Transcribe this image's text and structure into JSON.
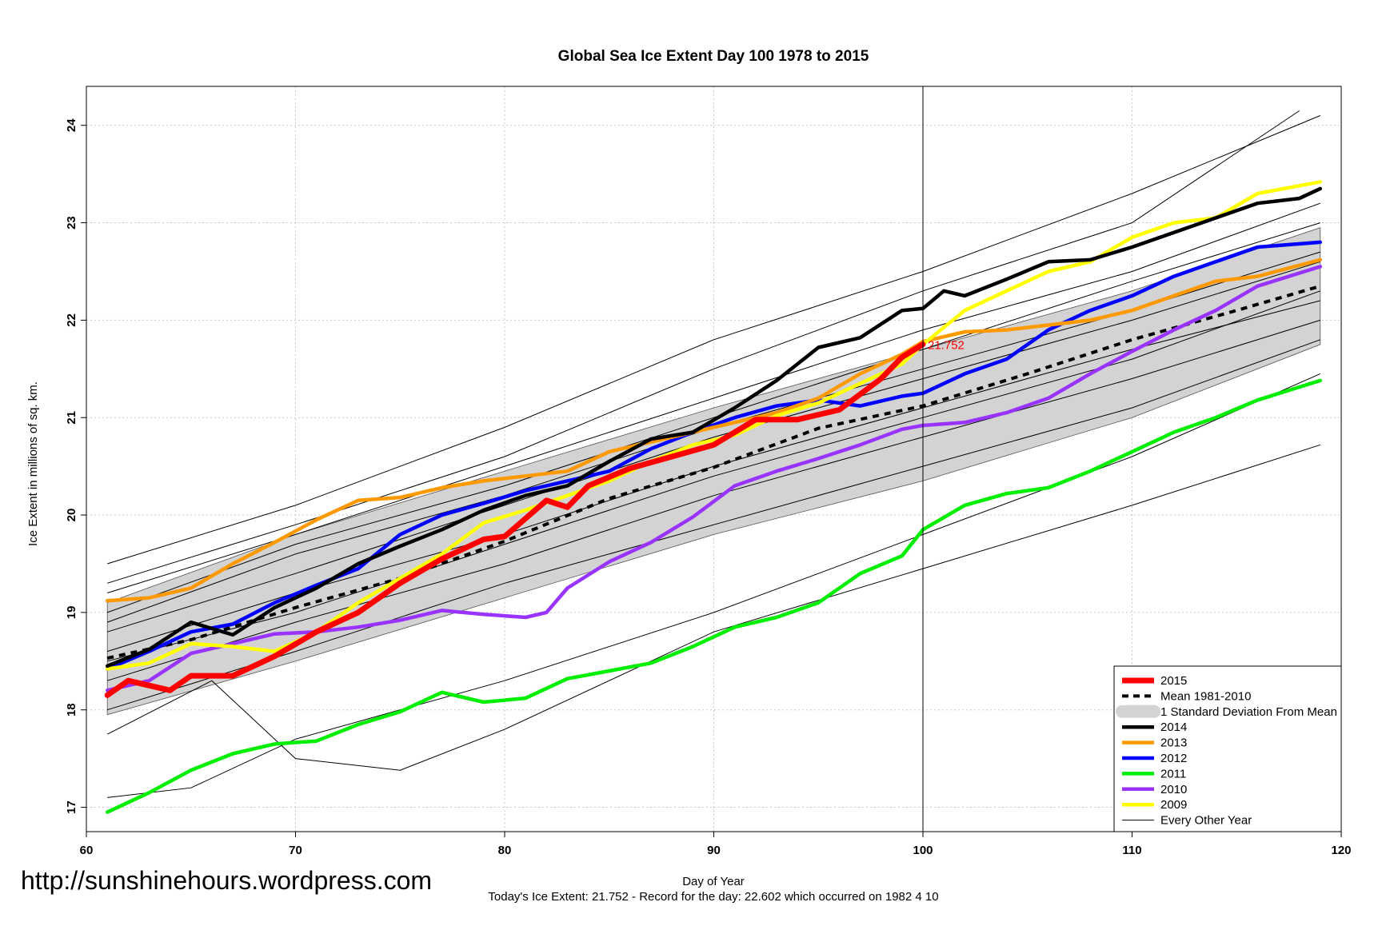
{
  "chart_data": {
    "type": "line",
    "title": "Global Sea Ice Extent Day 100 1978 to 2015",
    "xlabel": "Day of Year",
    "ylabel": "Ice Extent in millions of sq. km.",
    "xlim": [
      60,
      120
    ],
    "ylim": [
      16.75,
      24.4
    ],
    "x_ticks": [
      60,
      70,
      80,
      90,
      100,
      110,
      120
    ],
    "y_ticks": [
      17,
      18,
      19,
      20,
      21,
      22,
      23,
      24
    ],
    "grid": true,
    "vline_x": 100,
    "legend_position": "bottom-right",
    "annotation": {
      "text": "21.752",
      "x": 100,
      "y": 21.752
    },
    "std_band": {
      "x": [
        61,
        70,
        80,
        90,
        100,
        110,
        119
      ],
      "lower": [
        17.95,
        18.5,
        19.15,
        19.8,
        20.35,
        21.0,
        21.75
      ],
      "upper": [
        19.1,
        19.8,
        20.45,
        21.1,
        21.7,
        22.3,
        22.95
      ]
    },
    "mean_series": {
      "name": "Mean 1981-2010",
      "x": [
        61,
        65,
        70,
        75,
        80,
        85,
        90,
        95,
        100,
        105,
        110,
        115,
        119
      ],
      "values": [
        18.53,
        18.72,
        19.05,
        19.35,
        19.73,
        20.17,
        20.49,
        20.89,
        21.12,
        21.45,
        21.8,
        22.1,
        22.35
      ]
    },
    "series": [
      {
        "name": "2015",
        "color": "#ff0000",
        "width": 7,
        "x": [
          61,
          62,
          64,
          65,
          67,
          69,
          71,
          73,
          75,
          77,
          79,
          80,
          82,
          83,
          84,
          86,
          88,
          90,
          92,
          94,
          96,
          98,
          99,
          100
        ],
        "values": [
          18.15,
          18.3,
          18.2,
          18.35,
          18.35,
          18.55,
          18.8,
          19.0,
          19.3,
          19.55,
          19.75,
          19.78,
          20.15,
          20.08,
          20.3,
          20.48,
          20.6,
          20.72,
          20.98,
          20.98,
          21.08,
          21.4,
          21.62,
          21.752
        ]
      },
      {
        "name": "2014",
        "color": "#000000",
        "width": 4.5,
        "x": [
          61,
          63,
          65,
          67,
          69,
          71,
          73,
          75,
          77,
          79,
          81,
          83,
          85,
          87,
          89,
          91,
          93,
          95,
          97,
          99,
          100,
          101,
          102,
          104,
          106,
          108,
          110,
          112,
          114,
          116,
          118,
          119
        ],
        "values": [
          18.45,
          18.62,
          18.9,
          18.77,
          19.05,
          19.25,
          19.5,
          19.68,
          19.85,
          20.05,
          20.2,
          20.3,
          20.55,
          20.78,
          20.85,
          21.1,
          21.38,
          21.72,
          21.82,
          22.1,
          22.12,
          22.3,
          22.25,
          22.42,
          22.6,
          22.62,
          22.75,
          22.9,
          23.05,
          23.2,
          23.25,
          23.35
        ]
      },
      {
        "name": "2013",
        "color": "#ff9900",
        "width": 4.5,
        "x": [
          61,
          63,
          65,
          67,
          69,
          71,
          73,
          75,
          77,
          79,
          81,
          83,
          85,
          87,
          89,
          91,
          93,
          95,
          97,
          99,
          100,
          102,
          104,
          106,
          108,
          110,
          112,
          114,
          116,
          119
        ],
        "values": [
          19.12,
          19.15,
          19.25,
          19.5,
          19.72,
          19.95,
          20.15,
          20.18,
          20.28,
          20.35,
          20.4,
          20.45,
          20.65,
          20.75,
          20.85,
          20.95,
          21.05,
          21.2,
          21.45,
          21.65,
          21.78,
          21.88,
          21.9,
          21.95,
          22.0,
          22.1,
          22.25,
          22.4,
          22.45,
          22.62
        ]
      },
      {
        "name": "2012",
        "color": "#0000ff",
        "width": 4.5,
        "x": [
          61,
          63,
          65,
          67,
          69,
          71,
          73,
          75,
          77,
          79,
          81,
          83,
          85,
          87,
          89,
          91,
          93,
          95,
          97,
          99,
          100,
          102,
          104,
          106,
          108,
          110,
          112,
          114,
          116,
          119
        ],
        "values": [
          18.42,
          18.6,
          18.8,
          18.88,
          19.1,
          19.28,
          19.45,
          19.8,
          20.0,
          20.12,
          20.25,
          20.35,
          20.45,
          20.68,
          20.85,
          21.0,
          21.12,
          21.18,
          21.12,
          21.22,
          21.25,
          21.45,
          21.6,
          21.9,
          22.1,
          22.25,
          22.45,
          22.6,
          22.75,
          22.8
        ]
      },
      {
        "name": "2011",
        "color": "#00ee00",
        "width": 4.5,
        "x": [
          61,
          63,
          65,
          67,
          69,
          71,
          73,
          75,
          77,
          79,
          81,
          83,
          85,
          87,
          89,
          91,
          93,
          95,
          97,
          99,
          100,
          102,
          104,
          106,
          108,
          110,
          112,
          114,
          116,
          119
        ],
        "values": [
          16.95,
          17.15,
          17.38,
          17.55,
          17.65,
          17.68,
          17.85,
          17.98,
          18.18,
          18.08,
          18.12,
          18.32,
          18.4,
          18.48,
          18.65,
          18.85,
          18.95,
          19.1,
          19.4,
          19.58,
          19.85,
          20.1,
          20.22,
          20.28,
          20.45,
          20.65,
          20.85,
          21.0,
          21.18,
          21.38
        ]
      },
      {
        "name": "2010",
        "color": "#9933ff",
        "width": 4.5,
        "x": [
          61,
          63,
          65,
          67,
          69,
          71,
          73,
          75,
          77,
          79,
          81,
          82,
          83,
          85,
          87,
          89,
          91,
          93,
          95,
          97,
          99,
          100,
          102,
          104,
          106,
          108,
          110,
          112,
          114,
          116,
          119
        ],
        "values": [
          18.2,
          18.3,
          18.58,
          18.68,
          18.78,
          18.8,
          18.85,
          18.92,
          19.02,
          18.98,
          18.95,
          19.0,
          19.25,
          19.52,
          19.72,
          19.98,
          20.3,
          20.45,
          20.58,
          20.72,
          20.88,
          20.92,
          20.95,
          21.05,
          21.2,
          21.45,
          21.68,
          21.9,
          22.1,
          22.35,
          22.55
        ]
      },
      {
        "name": "2009",
        "color": "#ffff00",
        "width": 4.5,
        "x": [
          61,
          63,
          65,
          67,
          69,
          71,
          73,
          75,
          77,
          79,
          81,
          83,
          85,
          87,
          89,
          91,
          93,
          95,
          97,
          99,
          100,
          102,
          104,
          106,
          108,
          110,
          112,
          114,
          116,
          119
        ],
        "values": [
          18.42,
          18.48,
          18.68,
          18.65,
          18.6,
          18.8,
          19.1,
          19.35,
          19.6,
          19.92,
          20.05,
          20.2,
          20.35,
          20.55,
          20.72,
          20.82,
          21.02,
          21.15,
          21.35,
          21.55,
          21.75,
          22.1,
          22.3,
          22.5,
          22.6,
          22.85,
          23.0,
          23.05,
          23.3,
          23.42
        ]
      }
    ],
    "other_years": [
      {
        "x": [
          61,
          70,
          80,
          90,
          100,
          110,
          119
        ],
        "values": [
          19.5,
          20.1,
          20.9,
          21.8,
          22.5,
          23.3,
          24.1
        ]
      },
      {
        "x": [
          61,
          70,
          80,
          90,
          100,
          110,
          118
        ],
        "values": [
          19.3,
          19.9,
          20.6,
          21.5,
          22.3,
          23.0,
          24.15
        ]
      },
      {
        "x": [
          61,
          70,
          80,
          90,
          100,
          110,
          119
        ],
        "values": [
          19.0,
          19.7,
          20.3,
          21.0,
          21.7,
          22.4,
          23.0
        ]
      },
      {
        "x": [
          61,
          70,
          80,
          90,
          100,
          110,
          119
        ],
        "values": [
          18.8,
          19.4,
          20.1,
          20.8,
          21.4,
          22.0,
          22.6
        ]
      },
      {
        "x": [
          61,
          70,
          80,
          90,
          100,
          110,
          119
        ],
        "values": [
          18.6,
          19.2,
          19.8,
          20.5,
          21.1,
          21.7,
          22.2
        ]
      },
      {
        "x": [
          61,
          70,
          80,
          90,
          100,
          110,
          119
        ],
        "values": [
          18.3,
          18.9,
          19.5,
          20.2,
          20.8,
          21.4,
          22.0
        ]
      },
      {
        "x": [
          61,
          70,
          80,
          90,
          100,
          110,
          119
        ],
        "values": [
          18.0,
          18.6,
          19.3,
          19.9,
          20.5,
          21.1,
          21.8
        ]
      },
      {
        "x": [
          61,
          66,
          70,
          75,
          80,
          90,
          100,
          110,
          119
        ],
        "values": [
          17.75,
          18.3,
          17.5,
          17.38,
          17.8,
          18.8,
          19.45,
          20.1,
          20.72
        ]
      },
      {
        "x": [
          61,
          65,
          70,
          80,
          90,
          100,
          110,
          119
        ],
        "values": [
          17.1,
          17.2,
          17.7,
          18.3,
          19.0,
          19.8,
          20.6,
          21.45
        ]
      },
      {
        "x": [
          61,
          70,
          80,
          90,
          100,
          110,
          119
        ],
        "values": [
          18.9,
          19.6,
          20.2,
          20.9,
          21.5,
          22.1,
          22.7
        ]
      },
      {
        "x": [
          61,
          70,
          80,
          90,
          100,
          110,
          119
        ],
        "values": [
          19.2,
          19.8,
          20.5,
          21.2,
          21.9,
          22.5,
          23.2
        ]
      },
      {
        "x": [
          61,
          70,
          80,
          90,
          100,
          110,
          119
        ],
        "values": [
          18.5,
          19.0,
          19.7,
          20.4,
          21.0,
          21.6,
          22.3
        ]
      }
    ],
    "legend": [
      {
        "label": "2015",
        "color": "#ff0000",
        "kind": "line-thick"
      },
      {
        "label": "Mean 1981-2010",
        "color": "#000000",
        "kind": "dashed"
      },
      {
        "label": "1 Standard Deviation From Mean",
        "color": "#d3d3d3",
        "kind": "band"
      },
      {
        "label": "2014",
        "color": "#000000",
        "kind": "line"
      },
      {
        "label": "2013",
        "color": "#ff9900",
        "kind": "line"
      },
      {
        "label": "2012",
        "color": "#0000ff",
        "kind": "line"
      },
      {
        "label": "2011",
        "color": "#00ee00",
        "kind": "line"
      },
      {
        "label": "2010",
        "color": "#9933ff",
        "kind": "line"
      },
      {
        "label": "2009",
        "color": "#ffff00",
        "kind": "line"
      },
      {
        "label": "Every Other Year",
        "color": "#000000",
        "kind": "line-thin"
      }
    ]
  },
  "footer": {
    "url": "http://sunshinehours.wordpress.com",
    "summary": "Today's Ice Extent: 21.752  - Record for the day: 22.602 which occurred on 1982 4 10"
  }
}
